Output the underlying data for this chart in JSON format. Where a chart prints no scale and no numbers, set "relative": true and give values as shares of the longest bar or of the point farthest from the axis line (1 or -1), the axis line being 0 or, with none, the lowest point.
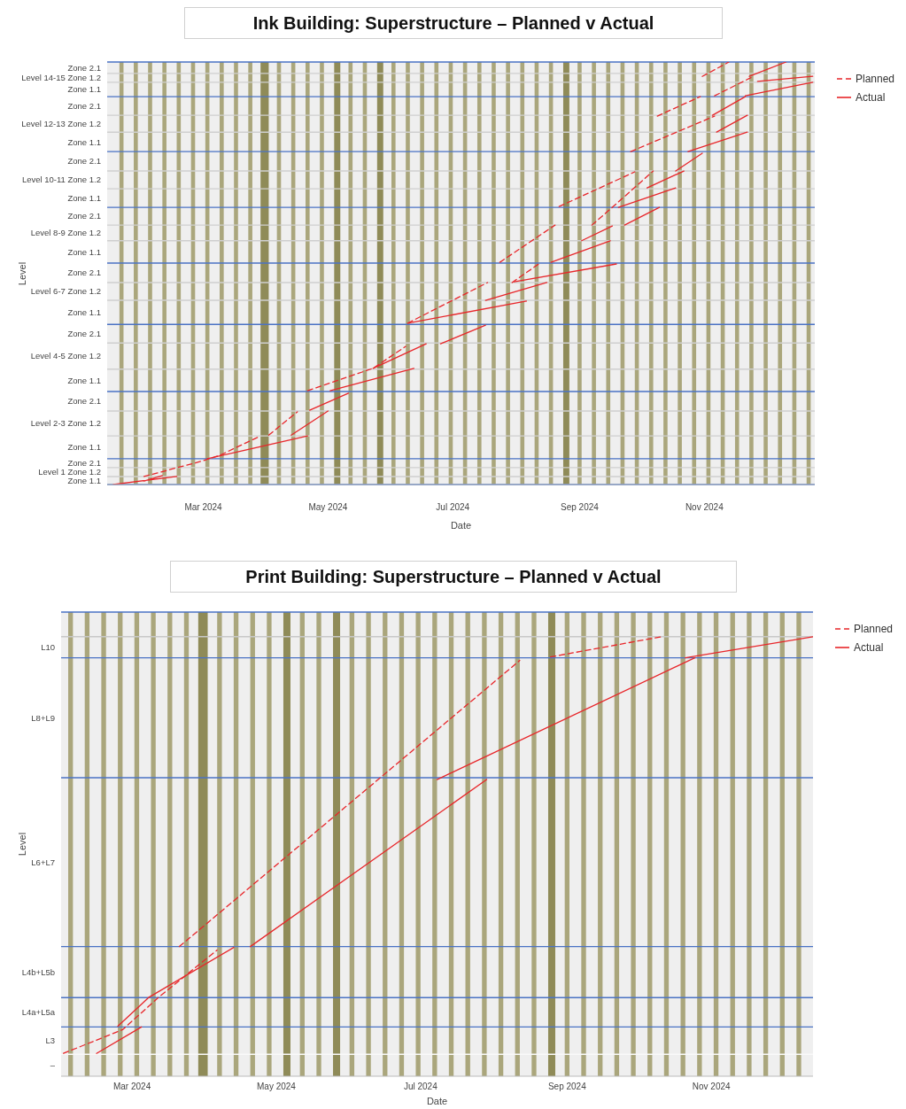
{
  "chart_data": [
    {
      "type": "line",
      "title": "Ink Building: Superstructure – Planned v Actual",
      "xlabel": "Date",
      "ylabel": "Level",
      "legend": "top right",
      "xlim": [
        "2024-01-14",
        "2024-12-25"
      ],
      "xticks": [
        {
          "value": "2024-03-01",
          "label": "Mar 2024"
        },
        {
          "value": "2024-05-01",
          "label": "May 2024"
        },
        {
          "value": "2024-07-01",
          "label": "Jul 2024"
        },
        {
          "value": "2024-09-01",
          "label": "Sep 2024"
        },
        {
          "value": "2024-11-01",
          "label": "Nov 2024"
        }
      ],
      "relative": true,
      "annotations": [
        "Zone 1.1",
        "Level 1 Zone 1.2",
        "Zone 2.1",
        "Zone 1.1",
        "Level 2-3 Zone 1.2",
        "Zone 2.1",
        "Zone 1.1",
        "Level 4-5 Zone 1.2",
        "Zone 2.1",
        "Zone 1.1",
        "Level 6-7 Zone 1.2",
        "Zone 2.1",
        "Zone 1.1",
        "Level 8-9 Zone 1.2",
        "Zone 2.1",
        "Zone 1.1",
        "Level 10-11 Zone 1.2",
        "Zone 2.1",
        "Zone 1.1",
        "Level 12-13 Zone 1.2",
        "Zone 2.1",
        "Zone 1.1",
        "Level 14-15 Zone 1.2",
        "Zone 2.1"
      ],
      "series": [
        {
          "name": "Planned",
          "color": "#e8262a",
          "line_style": "dashed",
          "x": [
            "2024-02-01",
            "2024-02-29",
            "2024-03-09",
            "2024-03-29",
            null,
            "2024-04-02",
            "2024-04-16",
            null,
            "2024-04-21",
            "2024-05-23",
            "2024-06-08",
            null,
            "2024-06-09",
            "2024-07-18",
            null,
            "2024-07-30",
            "2024-08-12",
            null,
            "2024-07-24",
            "2024-08-20",
            null,
            "2024-09-07",
            "2024-09-17",
            "2024-10-07",
            null,
            "2024-08-22",
            "2024-09-28",
            null,
            "2024-09-26",
            "2024-11-06",
            null,
            "2024-10-09",
            "2024-10-30",
            null,
            "2024-11-06",
            "2024-11-25",
            null,
            "2024-10-31",
            "2024-11-13"
          ],
          "values": [
            0.019,
            0.055,
            0.069,
            0.115,
            null,
            0.117,
            0.172,
            null,
            0.222,
            0.275,
            0.327,
            null,
            0.382,
            0.478,
            null,
            0.478,
            0.522,
            null,
            0.526,
            0.614,
            null,
            0.614,
            0.656,
            0.742,
            null,
            0.658,
            0.74,
            null,
            0.788,
            0.872,
            null,
            0.872,
            0.918,
            null,
            0.92,
            0.966,
            null,
            0.966,
            1
          ]
        },
        {
          "name": "Actual",
          "color": "#e8262a",
          "line_style": "solid",
          "x": [
            "2024-01-17",
            "2024-02-17",
            null,
            "2024-02-01",
            "2024-02-10",
            null,
            "2024-03-03",
            "2024-04-21",
            null,
            "2024-04-13",
            "2024-05-01",
            null,
            "2024-04-22",
            "2024-05-11",
            null,
            "2024-05-02",
            "2024-06-12",
            null,
            "2024-05-23",
            "2024-06-18",
            null,
            "2024-06-25",
            "2024-07-17",
            null,
            "2024-06-09",
            "2024-08-06",
            null,
            "2024-07-17",
            "2024-08-16",
            null,
            "2024-07-31",
            "2024-09-19",
            null,
            "2024-08-18",
            "2024-09-16",
            null,
            "2024-09-02",
            "2024-09-17",
            null,
            "2024-09-23",
            "2024-10-10",
            null,
            "2024-09-20",
            "2024-10-18",
            null,
            "2024-10-04",
            "2024-10-22",
            null,
            "2024-10-18",
            "2024-10-31",
            null,
            "2024-10-24",
            "2024-11-22",
            null,
            "2024-11-07",
            "2024-11-22",
            null,
            "2024-11-05",
            "2024-11-21",
            null,
            "2024-11-21",
            "2024-12-24",
            null,
            "2024-11-27",
            "2024-12-24",
            null,
            "2024-11-23",
            "2024-12-11"
          ],
          "values": [
            0,
            0.019,
            null,
            0.008,
            0.021,
            null,
            0.061,
            0.115,
            null,
            0.117,
            0.174,
            null,
            0.176,
            0.216,
            null,
            0.222,
            0.275,
            null,
            0.275,
            0.333,
            null,
            0.333,
            0.377,
            null,
            0.382,
            0.434,
            null,
            0.436,
            0.478,
            null,
            0.48,
            0.522,
            null,
            0.526,
            0.577,
            null,
            0.577,
            0.612,
            null,
            0.614,
            0.656,
            null,
            0.656,
            0.702,
            null,
            0.702,
            0.742,
            null,
            0.742,
            0.784,
            null,
            0.788,
            0.834,
            null,
            0.834,
            0.874,
            null,
            0.874,
            0.918,
            null,
            0.92,
            0.952,
            null,
            0.954,
            0.966,
            null,
            0.966,
            1
          ]
        }
      ],
      "ref_lines": [
        {
          "axis": "y",
          "value": 0.019,
          "color": "#cfcfcf"
        },
        {
          "axis": "y",
          "value": 0.04,
          "color": "#cfcfcf"
        },
        {
          "axis": "y",
          "value": 0.115,
          "color": "#cfcfcf"
        },
        {
          "axis": "y",
          "value": 0.174,
          "color": "#cfcfcf"
        },
        {
          "axis": "y",
          "value": 0.273,
          "color": "#cfcfcf"
        },
        {
          "axis": "y",
          "value": 0.335,
          "color": "#cfcfcf"
        },
        {
          "axis": "y",
          "value": 0.436,
          "color": "#cfcfcf"
        },
        {
          "axis": "y",
          "value": 0.478,
          "color": "#cfcfcf"
        },
        {
          "axis": "y",
          "value": 0.577,
          "color": "#cfcfcf"
        },
        {
          "axis": "y",
          "value": 0.614,
          "color": "#cfcfcf"
        },
        {
          "axis": "y",
          "value": 0.7,
          "color": "#cfcfcf"
        },
        {
          "axis": "y",
          "value": 0.742,
          "color": "#cfcfcf"
        },
        {
          "axis": "y",
          "value": 0.834,
          "color": "#cfcfcf"
        },
        {
          "axis": "y",
          "value": 0.874,
          "color": "#cfcfcf"
        },
        {
          "axis": "y",
          "value": 0.952,
          "color": "#cfcfcf"
        },
        {
          "axis": "y",
          "value": 0.973,
          "color": "#cfcfcf"
        },
        {
          "axis": "y",
          "value": 0,
          "color": "#4a72c4"
        },
        {
          "axis": "y",
          "value": 0.061,
          "color": "#4a72c4"
        },
        {
          "axis": "y",
          "value": 0.22,
          "color": "#4a72c4"
        },
        {
          "axis": "y",
          "value": 0.379,
          "color": "#4a72c4"
        },
        {
          "axis": "y",
          "value": 0.524,
          "color": "#4a72c4"
        },
        {
          "axis": "y",
          "value": 0.656,
          "color": "#4a72c4"
        },
        {
          "axis": "y",
          "value": 0.788,
          "color": "#4a72c4"
        },
        {
          "axis": "y",
          "value": 0.918,
          "color": "#4a72c4"
        },
        {
          "axis": "y",
          "value": 1,
          "color": "#4a72c4"
        }
      ],
      "bands": [
        {
          "axis": "x",
          "from": "2024-01-20",
          "to": "2024-01-22",
          "color": "#aaa67c"
        },
        {
          "axis": "x",
          "from": "2024-01-27",
          "to": "2024-01-29",
          "color": "#aaa67c"
        },
        {
          "axis": "x",
          "from": "2024-02-03",
          "to": "2024-02-05",
          "color": "#aaa67c"
        },
        {
          "axis": "x",
          "from": "2024-02-10",
          "to": "2024-02-12",
          "color": "#aaa67c"
        },
        {
          "axis": "x",
          "from": "2024-02-17",
          "to": "2024-02-19",
          "color": "#aaa67c"
        },
        {
          "axis": "x",
          "from": "2024-02-24",
          "to": "2024-02-26",
          "color": "#aaa67c"
        },
        {
          "axis": "x",
          "from": "2024-03-02",
          "to": "2024-03-04",
          "color": "#aaa67c"
        },
        {
          "axis": "x",
          "from": "2024-03-09",
          "to": "2024-03-11",
          "color": "#aaa67c"
        },
        {
          "axis": "x",
          "from": "2024-03-16",
          "to": "2024-03-18",
          "color": "#aaa67c"
        },
        {
          "axis": "x",
          "from": "2024-03-23",
          "to": "2024-03-25",
          "color": "#aaa67c"
        },
        {
          "axis": "x",
          "from": "2024-03-29",
          "to": "2024-04-02",
          "color": "#8f8b58"
        },
        {
          "axis": "x",
          "from": "2024-04-06",
          "to": "2024-04-08",
          "color": "#aaa67c"
        },
        {
          "axis": "x",
          "from": "2024-04-13",
          "to": "2024-04-15",
          "color": "#aaa67c"
        },
        {
          "axis": "x",
          "from": "2024-04-20",
          "to": "2024-04-22",
          "color": "#aaa67c"
        },
        {
          "axis": "x",
          "from": "2024-04-27",
          "to": "2024-04-29",
          "color": "#aaa67c"
        },
        {
          "axis": "x",
          "from": "2024-05-04",
          "to": "2024-05-07",
          "color": "#8f8b58"
        },
        {
          "axis": "x",
          "from": "2024-05-11",
          "to": "2024-05-13",
          "color": "#aaa67c"
        },
        {
          "axis": "x",
          "from": "2024-05-18",
          "to": "2024-05-20",
          "color": "#aaa67c"
        },
        {
          "axis": "x",
          "from": "2024-05-25",
          "to": "2024-05-28",
          "color": "#8f8b58"
        },
        {
          "axis": "x",
          "from": "2024-06-01",
          "to": "2024-06-03",
          "color": "#aaa67c"
        },
        {
          "axis": "x",
          "from": "2024-06-08",
          "to": "2024-06-10",
          "color": "#aaa67c"
        },
        {
          "axis": "x",
          "from": "2024-06-15",
          "to": "2024-06-17",
          "color": "#aaa67c"
        },
        {
          "axis": "x",
          "from": "2024-06-22",
          "to": "2024-06-24",
          "color": "#aaa67c"
        },
        {
          "axis": "x",
          "from": "2024-06-29",
          "to": "2024-07-01",
          "color": "#aaa67c"
        },
        {
          "axis": "x",
          "from": "2024-07-06",
          "to": "2024-07-08",
          "color": "#aaa67c"
        },
        {
          "axis": "x",
          "from": "2024-07-13",
          "to": "2024-07-15",
          "color": "#aaa67c"
        },
        {
          "axis": "x",
          "from": "2024-07-20",
          "to": "2024-07-22",
          "color": "#aaa67c"
        },
        {
          "axis": "x",
          "from": "2024-07-27",
          "to": "2024-07-29",
          "color": "#aaa67c"
        },
        {
          "axis": "x",
          "from": "2024-08-03",
          "to": "2024-08-05",
          "color": "#aaa67c"
        },
        {
          "axis": "x",
          "from": "2024-08-10",
          "to": "2024-08-12",
          "color": "#aaa67c"
        },
        {
          "axis": "x",
          "from": "2024-08-17",
          "to": "2024-08-19",
          "color": "#aaa67c"
        },
        {
          "axis": "x",
          "from": "2024-08-24",
          "to": "2024-08-27",
          "color": "#8f8b58"
        },
        {
          "axis": "x",
          "from": "2024-08-31",
          "to": "2024-09-02",
          "color": "#aaa67c"
        },
        {
          "axis": "x",
          "from": "2024-09-07",
          "to": "2024-09-09",
          "color": "#aaa67c"
        },
        {
          "axis": "x",
          "from": "2024-09-14",
          "to": "2024-09-16",
          "color": "#aaa67c"
        },
        {
          "axis": "x",
          "from": "2024-09-21",
          "to": "2024-09-23",
          "color": "#aaa67c"
        },
        {
          "axis": "x",
          "from": "2024-09-28",
          "to": "2024-09-30",
          "color": "#aaa67c"
        },
        {
          "axis": "x",
          "from": "2024-10-05",
          "to": "2024-10-07",
          "color": "#aaa67c"
        },
        {
          "axis": "x",
          "from": "2024-10-12",
          "to": "2024-10-14",
          "color": "#aaa67c"
        },
        {
          "axis": "x",
          "from": "2024-10-19",
          "to": "2024-10-21",
          "color": "#aaa67c"
        },
        {
          "axis": "x",
          "from": "2024-10-26",
          "to": "2024-10-28",
          "color": "#aaa67c"
        },
        {
          "axis": "x",
          "from": "2024-11-02",
          "to": "2024-11-04",
          "color": "#aaa67c"
        },
        {
          "axis": "x",
          "from": "2024-11-09",
          "to": "2024-11-11",
          "color": "#aaa67c"
        },
        {
          "axis": "x",
          "from": "2024-11-16",
          "to": "2024-11-18",
          "color": "#aaa67c"
        },
        {
          "axis": "x",
          "from": "2024-11-23",
          "to": "2024-11-25",
          "color": "#aaa67c"
        },
        {
          "axis": "x",
          "from": "2024-11-30",
          "to": "2024-12-02",
          "color": "#aaa67c"
        },
        {
          "axis": "x",
          "from": "2024-12-07",
          "to": "2024-12-09",
          "color": "#aaa67c"
        },
        {
          "axis": "x",
          "from": "2024-12-14",
          "to": "2024-12-16",
          "color": "#aaa67c"
        },
        {
          "axis": "x",
          "from": "2024-12-21",
          "to": "2024-12-23",
          "color": "#aaa67c"
        }
      ]
    },
    {
      "type": "line",
      "title": "Print Building: Superstructure – Planned v Actual",
      "xlabel": "Date",
      "ylabel": "Level",
      "legend": "top right",
      "xlim": [
        "2024-01-31",
        "2024-12-14"
      ],
      "xticks": [
        {
          "value": "2024-03-01",
          "label": "Mar 2024"
        },
        {
          "value": "2024-05-01",
          "label": "May 2024"
        },
        {
          "value": "2024-07-01",
          "label": "Jul 2024"
        },
        {
          "value": "2024-09-01",
          "label": "Sep 2024"
        },
        {
          "value": "2024-11-01",
          "label": "Nov 2024"
        }
      ],
      "relative": true,
      "annotations": [
        "–",
        "L3",
        "L4a+L5a",
        "L4b+L5b",
        "L6+L7",
        "L8+L9",
        "L10"
      ],
      "series": [
        {
          "name": "Planned",
          "color": "#e8262a",
          "line_style": "dashed",
          "x": [
            "2024-02-01",
            "2024-02-26",
            "2024-03-13",
            "2024-04-06",
            null,
            "2024-03-21",
            "2024-08-12",
            null,
            "2024-08-25",
            "2024-10-11"
          ],
          "values": [
            0.052,
            0.106,
            0.183,
            0.287,
            null,
            0.295,
            0.946,
            null,
            0.954,
            1
          ]
        },
        {
          "name": "Actual",
          "color": "#e8262a",
          "line_style": "solid",
          "x": [
            "2024-02-15",
            "2024-03-05",
            null,
            "2024-02-24",
            "2024-03-08",
            "2024-04-13",
            null,
            "2024-04-20",
            "2024-07-29",
            null,
            "2024-07-08",
            "2024-10-25",
            null,
            "2024-10-21",
            "2024-12-14"
          ],
          "values": [
            0.052,
            0.112,
            null,
            0.114,
            0.179,
            0.293,
            null,
            0.295,
            0.675,
            null,
            0.675,
            0.952,
            null,
            0.952,
            1
          ]
        }
      ],
      "ref_lines": [
        {
          "axis": "y",
          "value": 0.05,
          "color": "#fafafa"
        },
        {
          "axis": "y",
          "value": 1,
          "color": "#c8c8c8"
        },
        {
          "axis": "y",
          "value": 0.112,
          "color": "#4a72c4"
        },
        {
          "axis": "y",
          "value": 0.179,
          "color": "#4a72c4"
        },
        {
          "axis": "y",
          "value": 0.295,
          "color": "#4a72c4"
        },
        {
          "axis": "y",
          "value": 0.679,
          "color": "#4a72c4"
        },
        {
          "axis": "y",
          "value": 0.952,
          "color": "#4a72c4"
        },
        {
          "axis": "y",
          "value": 1.056,
          "color": "#4a72c4"
        }
      ],
      "bands": [
        {
          "axis": "x",
          "from": "2024-02-03",
          "to": "2024-02-05",
          "color": "#aaa67c"
        },
        {
          "axis": "x",
          "from": "2024-02-10",
          "to": "2024-02-12",
          "color": "#aaa67c"
        },
        {
          "axis": "x",
          "from": "2024-02-17",
          "to": "2024-02-19",
          "color": "#aaa67c"
        },
        {
          "axis": "x",
          "from": "2024-02-24",
          "to": "2024-02-26",
          "color": "#aaa67c"
        },
        {
          "axis": "x",
          "from": "2024-03-02",
          "to": "2024-03-04",
          "color": "#aaa67c"
        },
        {
          "axis": "x",
          "from": "2024-03-09",
          "to": "2024-03-11",
          "color": "#aaa67c"
        },
        {
          "axis": "x",
          "from": "2024-03-16",
          "to": "2024-03-18",
          "color": "#aaa67c"
        },
        {
          "axis": "x",
          "from": "2024-03-23",
          "to": "2024-03-25",
          "color": "#aaa67c"
        },
        {
          "axis": "x",
          "from": "2024-03-29",
          "to": "2024-04-02",
          "color": "#8f8b58"
        },
        {
          "axis": "x",
          "from": "2024-04-06",
          "to": "2024-04-08",
          "color": "#aaa67c"
        },
        {
          "axis": "x",
          "from": "2024-04-13",
          "to": "2024-04-15",
          "color": "#aaa67c"
        },
        {
          "axis": "x",
          "from": "2024-04-20",
          "to": "2024-04-22",
          "color": "#aaa67c"
        },
        {
          "axis": "x",
          "from": "2024-04-27",
          "to": "2024-04-29",
          "color": "#aaa67c"
        },
        {
          "axis": "x",
          "from": "2024-05-04",
          "to": "2024-05-07",
          "color": "#8f8b58"
        },
        {
          "axis": "x",
          "from": "2024-05-11",
          "to": "2024-05-13",
          "color": "#aaa67c"
        },
        {
          "axis": "x",
          "from": "2024-05-18",
          "to": "2024-05-20",
          "color": "#aaa67c"
        },
        {
          "axis": "x",
          "from": "2024-05-25",
          "to": "2024-05-28",
          "color": "#8f8b58"
        },
        {
          "axis": "x",
          "from": "2024-06-01",
          "to": "2024-06-03",
          "color": "#aaa67c"
        },
        {
          "axis": "x",
          "from": "2024-06-08",
          "to": "2024-06-10",
          "color": "#aaa67c"
        },
        {
          "axis": "x",
          "from": "2024-06-15",
          "to": "2024-06-17",
          "color": "#aaa67c"
        },
        {
          "axis": "x",
          "from": "2024-06-22",
          "to": "2024-06-24",
          "color": "#aaa67c"
        },
        {
          "axis": "x",
          "from": "2024-06-29",
          "to": "2024-07-01",
          "color": "#aaa67c"
        },
        {
          "axis": "x",
          "from": "2024-07-06",
          "to": "2024-07-08",
          "color": "#aaa67c"
        },
        {
          "axis": "x",
          "from": "2024-07-13",
          "to": "2024-07-15",
          "color": "#aaa67c"
        },
        {
          "axis": "x",
          "from": "2024-07-20",
          "to": "2024-07-22",
          "color": "#aaa67c"
        },
        {
          "axis": "x",
          "from": "2024-07-27",
          "to": "2024-07-29",
          "color": "#aaa67c"
        },
        {
          "axis": "x",
          "from": "2024-08-03",
          "to": "2024-08-05",
          "color": "#aaa67c"
        },
        {
          "axis": "x",
          "from": "2024-08-10",
          "to": "2024-08-12",
          "color": "#aaa67c"
        },
        {
          "axis": "x",
          "from": "2024-08-17",
          "to": "2024-08-19",
          "color": "#aaa67c"
        },
        {
          "axis": "x",
          "from": "2024-08-24",
          "to": "2024-08-27",
          "color": "#8f8b58"
        },
        {
          "axis": "x",
          "from": "2024-08-31",
          "to": "2024-09-02",
          "color": "#aaa67c"
        },
        {
          "axis": "x",
          "from": "2024-09-07",
          "to": "2024-09-09",
          "color": "#aaa67c"
        },
        {
          "axis": "x",
          "from": "2024-09-14",
          "to": "2024-09-16",
          "color": "#aaa67c"
        },
        {
          "axis": "x",
          "from": "2024-09-21",
          "to": "2024-09-23",
          "color": "#aaa67c"
        },
        {
          "axis": "x",
          "from": "2024-09-28",
          "to": "2024-09-30",
          "color": "#aaa67c"
        },
        {
          "axis": "x",
          "from": "2024-10-05",
          "to": "2024-10-07",
          "color": "#aaa67c"
        },
        {
          "axis": "x",
          "from": "2024-10-12",
          "to": "2024-10-14",
          "color": "#aaa67c"
        },
        {
          "axis": "x",
          "from": "2024-10-19",
          "to": "2024-10-21",
          "color": "#aaa67c"
        },
        {
          "axis": "x",
          "from": "2024-10-26",
          "to": "2024-10-28",
          "color": "#aaa67c"
        },
        {
          "axis": "x",
          "from": "2024-11-02",
          "to": "2024-11-04",
          "color": "#aaa67c"
        },
        {
          "axis": "x",
          "from": "2024-11-09",
          "to": "2024-11-11",
          "color": "#aaa67c"
        },
        {
          "axis": "x",
          "from": "2024-11-16",
          "to": "2024-11-18",
          "color": "#aaa67c"
        },
        {
          "axis": "x",
          "from": "2024-11-23",
          "to": "2024-11-25",
          "color": "#aaa67c"
        },
        {
          "axis": "x",
          "from": "2024-11-30",
          "to": "2024-12-02",
          "color": "#aaa67c"
        },
        {
          "axis": "x",
          "from": "2024-12-07",
          "to": "2024-12-09",
          "color": "#aaa67c"
        }
      ]
    }
  ]
}
